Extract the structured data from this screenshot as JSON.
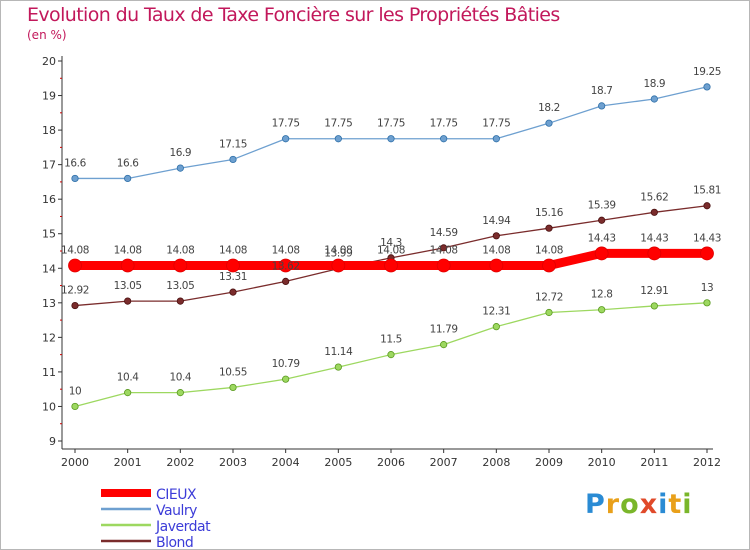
{
  "header": {
    "title": "Evolution du Taux de Taxe Foncière sur les Propriétés Bâties",
    "unit": "(en %)"
  },
  "logo": {
    "text": "Proxiti",
    "letter_colors": [
      "#2a8bd4",
      "#e9a01a",
      "#7ab62a",
      "#e04a2a",
      "#2a8bd4",
      "#e9a01a",
      "#7ab62a"
    ]
  },
  "chart_data": {
    "type": "line",
    "title": "Evolution du Taux de Taxe Foncière sur les Propriétés Bâties",
    "ylabel": "(en %)",
    "xlabel": "",
    "x": [
      "2000",
      "2001",
      "2002",
      "2003",
      "2004",
      "2005",
      "2006",
      "2007",
      "2008",
      "2009",
      "2010",
      "2011",
      "2012"
    ],
    "ylim": [
      9,
      20
    ],
    "yticks": [
      "9",
      "10",
      "11",
      "12",
      "13",
      "14",
      "15",
      "16",
      "17",
      "18",
      "19",
      "20"
    ],
    "grid": false,
    "legend_position": "bottom-left",
    "series": [
      {
        "name": "CIEUX",
        "color": "#ff0000",
        "values": [
          14.08,
          14.08,
          14.08,
          14.08,
          14.08,
          14.08,
          14.08,
          14.08,
          14.08,
          14.08,
          14.43,
          14.43,
          14.43
        ],
        "labels": [
          "14.08",
          "14.08",
          "14.08",
          "14.08",
          "14.08",
          "14.08",
          "14.08",
          "14.08",
          "14.08",
          "14.08",
          "14.43",
          "14.43",
          "14.43"
        ]
      },
      {
        "name": "Vaulry",
        "color": "#6ea0d0",
        "values": [
          16.6,
          16.6,
          16.9,
          17.15,
          17.75,
          17.75,
          17.75,
          17.75,
          17.75,
          18.2,
          18.7,
          18.9,
          19.25
        ],
        "labels": [
          "16.6",
          "16.6",
          "16.9",
          "17.15",
          "17.75",
          "17.75",
          "17.75",
          "17.75",
          "17.75",
          "18.2",
          "18.7",
          "18.9",
          "19.25"
        ]
      },
      {
        "name": "Javerdat",
        "color": "#9dd860",
        "values": [
          10,
          10.4,
          10.4,
          10.55,
          10.79,
          11.14,
          11.5,
          11.79,
          12.31,
          12.72,
          12.8,
          12.91,
          13
        ],
        "labels": [
          "10",
          "10.4",
          "10.4",
          "10.55",
          "10.79",
          "11.14",
          "11.5",
          "11.79",
          "12.31",
          "12.72",
          "12.8",
          "12.91",
          "13"
        ]
      },
      {
        "name": "Blond",
        "color": "#7a2c2c",
        "values": [
          12.92,
          13.05,
          13.05,
          13.31,
          13.62,
          13.99,
          14.3,
          14.59,
          14.94,
          15.16,
          15.39,
          15.62,
          15.81
        ],
        "labels": [
          "12.92",
          "13.05",
          "13.05",
          "13.31",
          "13.62",
          "13.99",
          "14.3",
          "14.59",
          "14.94",
          "15.16",
          "15.39",
          "15.62",
          "15.81"
        ]
      }
    ]
  }
}
